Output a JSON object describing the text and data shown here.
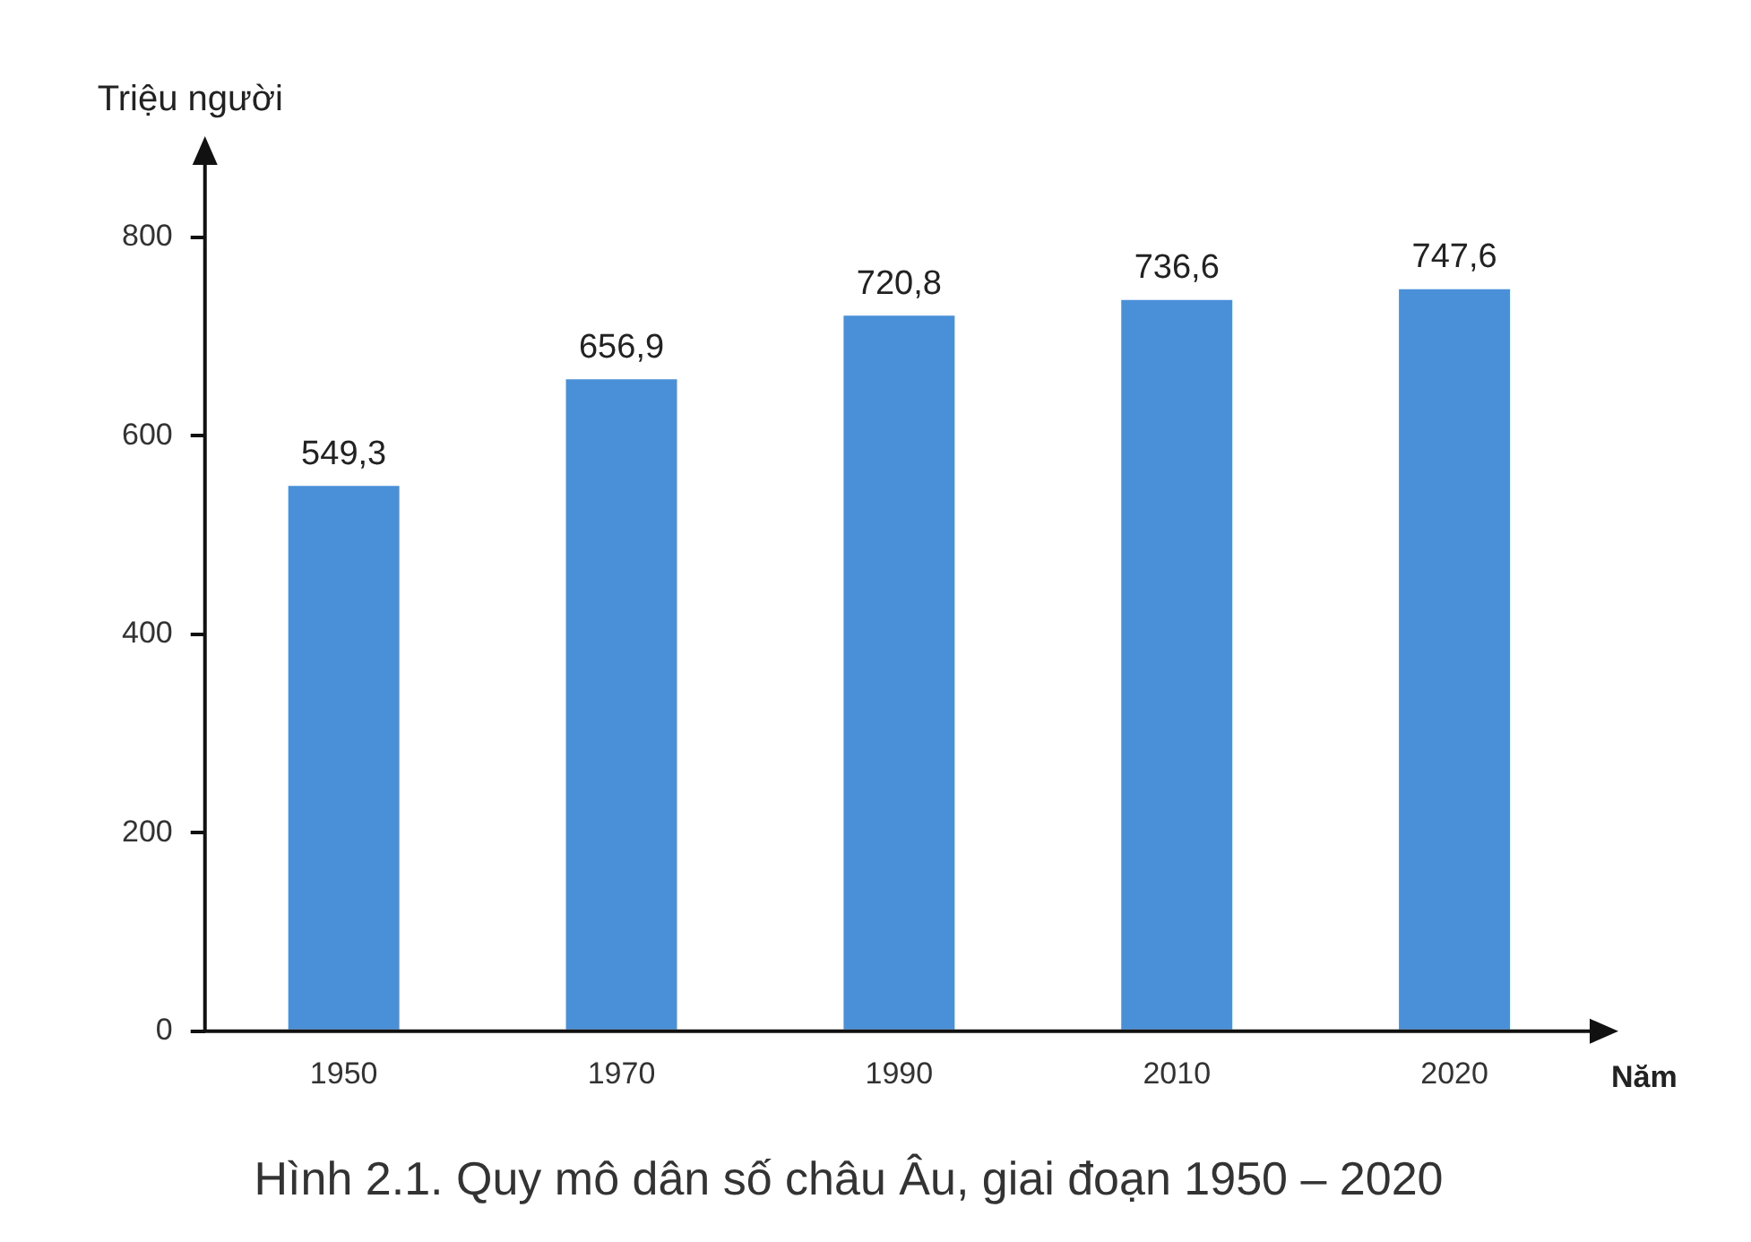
{
  "chart_data": {
    "type": "bar",
    "title": "Hình 2.1. Quy mô dân số châu Âu, giai đoạn 1950 – 2020",
    "xlabel": "Năm",
    "ylabel": "Triệu người",
    "categories": [
      "1950",
      "1970",
      "1990",
      "2010",
      "2020"
    ],
    "values": [
      549.3,
      656.9,
      720.8,
      736.6,
      747.6
    ],
    "value_labels": [
      "549,3",
      "656,9",
      "720,8",
      "736,6",
      "747,6"
    ],
    "color": "#4a90d9",
    "ylim": [
      0,
      880
    ],
    "yticks": [
      0,
      200,
      400,
      600,
      800
    ],
    "grid": false,
    "legend": false
  }
}
